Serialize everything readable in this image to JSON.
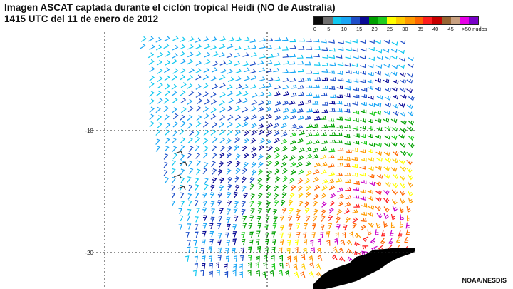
{
  "header": {
    "title_line1": "Imagen ASCAT captada durante el ciclón tropical Heidi (NO de Australia)",
    "title_line2": "1415 UTC del 11 de enero de 2012"
  },
  "legend": {
    "unit": "nudos",
    "colors": [
      "#0a0a0a",
      "#6e6e6e",
      "#0fc8f0",
      "#19a6f5",
      "#1e4ec8",
      "#0a0a96",
      "#00a000",
      "#1ecc1e",
      "#ffff00",
      "#ffcc00",
      "#ff9900",
      "#ff6600",
      "#ff1e1e",
      "#c80000",
      "#966432",
      "#c8a080",
      "#e600e6",
      "#7800c8"
    ],
    "labels": [
      "0",
      "5",
      "10",
      "15",
      "20",
      "25",
      "30",
      "35",
      "40",
      "45",
      ">50 nudos"
    ]
  },
  "map": {
    "lat_labels": [
      "-18",
      "-20"
    ],
    "storm_name": "Heidi",
    "region": "NO de Australia"
  },
  "credit": "NOAA/NESDIS"
}
